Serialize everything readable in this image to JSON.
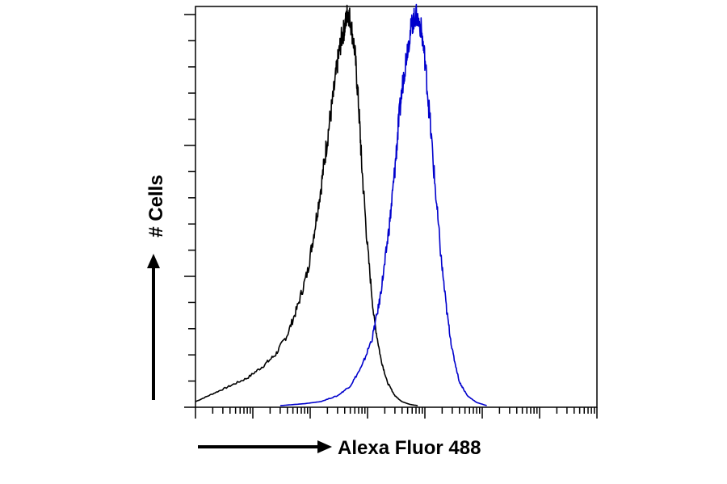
{
  "chart_data": {
    "type": "area",
    "title": "",
    "xlabel": "Alexa Fluor 488",
    "ylabel": "# Cells",
    "xscale": "log",
    "xlim": [
      1,
      10000000
    ],
    "ylim": [
      0,
      100
    ],
    "grid": false,
    "legend": "none",
    "series": [
      {
        "color": "#000000",
        "x": [
          1.0,
          2.0,
          4.0,
          8.0,
          15.0,
          25.0,
          40.0,
          60.0,
          90.0,
          120.0,
          160.0,
          200.0,
          250.0,
          300.0,
          350.0,
          400.0,
          450.0,
          500.0,
          600.0,
          700.0,
          800.0,
          1000.0,
          1300.0,
          1700.0,
          2200.0,
          3000.0,
          4000.0,
          5500.0,
          7500.0
        ],
        "values": [
          1,
          3,
          5,
          7,
          10,
          13,
          18,
          25,
          34,
          45,
          57,
          68,
          78,
          87,
          93,
          96,
          100,
          98,
          90,
          76,
          60,
          40,
          22,
          12,
          6,
          2.5,
          1,
          0.3,
          0
        ]
      },
      {
        "color": "#0000cc",
        "x": [
          30.0,
          80.0,
          150.0,
          300.0,
          500.0,
          800.0,
          1200.0,
          1600.0,
          2000.0,
          2500.0,
          3000.0,
          3500.0,
          4200.0,
          5000.0,
          6000.0,
          7000.0,
          8500.0,
          10000.0,
          12000.0,
          15000.0,
          19000.0,
          24000.0,
          30000.0,
          40000.0,
          55000.0,
          80000.0,
          120000.0
        ],
        "values": [
          0,
          0.5,
          1,
          2.5,
          5,
          10,
          17,
          26,
          36,
          48,
          60,
          72,
          83,
          91,
          97,
          99,
          96,
          88,
          74,
          56,
          38,
          24,
          14,
          6,
          2.5,
          0.8,
          0
        ]
      }
    ]
  }
}
